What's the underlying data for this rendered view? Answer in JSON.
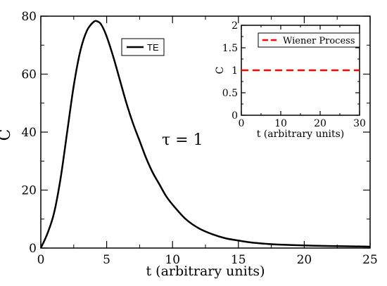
{
  "chart_data": [
    {
      "type": "line",
      "title": "",
      "xlabel": "t (arbitrary units)",
      "ylabel": "C",
      "xlim": [
        0,
        25
      ],
      "ylim": [
        0,
        80
      ],
      "xticks": [
        0,
        5,
        10,
        15,
        20,
        25
      ],
      "yticks": [
        0,
        20,
        40,
        60,
        80
      ],
      "grid": false,
      "legend_position": "top-center",
      "annotation": "τ = 1",
      "series": [
        {
          "name": "TE",
          "color": "#000000",
          "style": "solid",
          "x": [
            0,
            0.5,
            1,
            1.5,
            2,
            2.5,
            3,
            3.5,
            4,
            4.3,
            4.6,
            5,
            5.5,
            6,
            6.5,
            7,
            7.5,
            8,
            8.5,
            9,
            9.5,
            10,
            11,
            12,
            13,
            14,
            15,
            16,
            17,
            18,
            20,
            22,
            25
          ],
          "y": [
            0,
            5,
            12,
            24,
            40,
            56,
            68,
            75,
            78,
            78.2,
            77,
            73,
            66,
            58,
            50,
            43,
            37,
            31,
            26,
            22,
            18,
            15,
            10,
            6.8,
            4.8,
            3.4,
            2.6,
            1.9,
            1.5,
            1.2,
            0.9,
            0.7,
            0.5
          ]
        }
      ]
    },
    {
      "type": "line",
      "title": "",
      "xlabel": "t (arbitrary units)",
      "ylabel": "C",
      "xlim": [
        0,
        30
      ],
      "ylim": [
        0,
        2
      ],
      "xticks": [
        0,
        10,
        20,
        30
      ],
      "yticks": [
        0,
        0.5,
        1,
        1.5,
        2
      ],
      "ytick_labels": [
        "0",
        "0.5",
        "1",
        "1.5",
        "2"
      ],
      "grid": false,
      "legend_position": "top",
      "series": [
        {
          "name": "Wiener Process",
          "color": "#ff0000",
          "style": "dashed",
          "x": [
            0,
            30
          ],
          "y": [
            1,
            1
          ]
        }
      ]
    }
  ]
}
